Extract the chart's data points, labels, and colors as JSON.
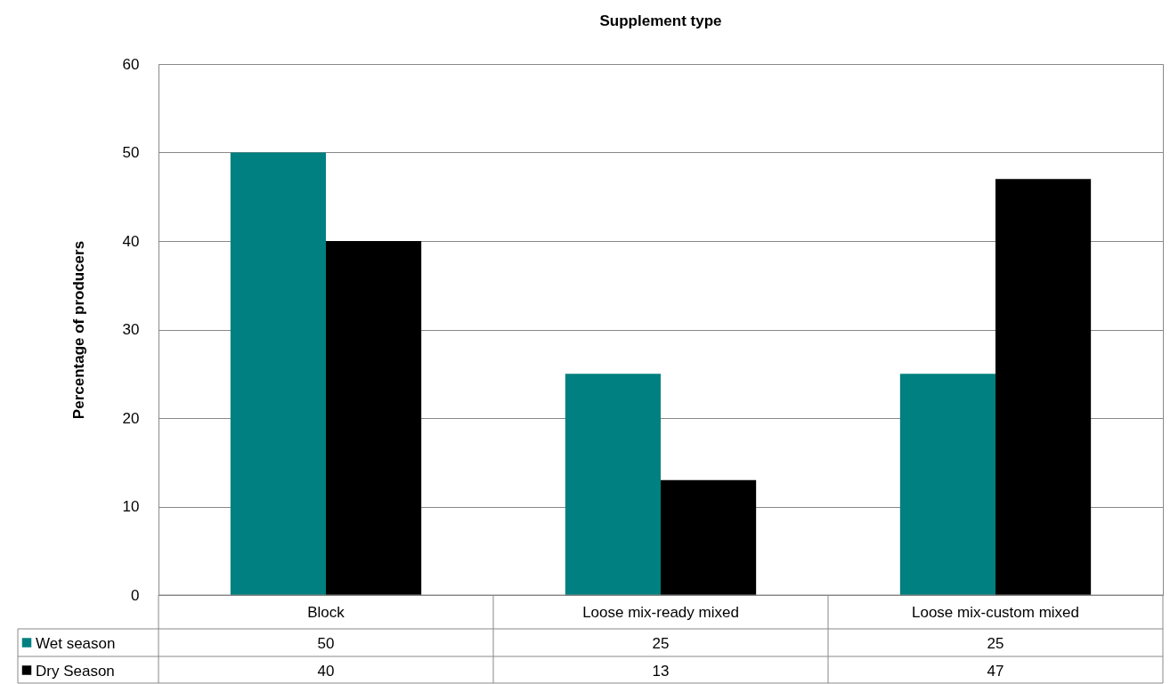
{
  "chart_data": {
    "type": "bar",
    "title": "Supplement type",
    "ylabel": "Percentage of producers",
    "categories": [
      "Block",
      "Loose mix-ready mixed",
      "Loose mix-custom mixed"
    ],
    "series": [
      {
        "name": "Wet season",
        "color": "#008080",
        "values": [
          50,
          25,
          25
        ]
      },
      {
        "name": "Dry Season",
        "color": "#000000",
        "values": [
          40,
          13,
          47
        ]
      }
    ],
    "ylim": [
      0,
      60
    ],
    "yticks": [
      0,
      10,
      20,
      30,
      40,
      50,
      60
    ],
    "grid": "y",
    "data_labels": true,
    "legend": "bottom"
  }
}
